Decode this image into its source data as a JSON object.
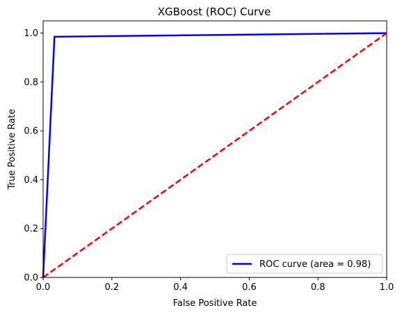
{
  "chart_data": {
    "type": "line",
    "title": "XGBoost (ROC) Curve",
    "xlabel": "False Positive Rate",
    "ylabel": "True Positive Rate",
    "xlim": [
      0.0,
      1.0
    ],
    "ylim": [
      0.0,
      1.05
    ],
    "xticks": [
      "0.0",
      "0.2",
      "0.4",
      "0.6",
      "0.8",
      "1.0"
    ],
    "yticks": [
      "0.0",
      "0.2",
      "0.4",
      "0.6",
      "0.8",
      "1.0"
    ],
    "grid": false,
    "legend_position": "lower-right",
    "series": [
      {
        "name": "ROC curve (area = 0.98)",
        "color": "#0000ff",
        "style": "solid",
        "x": [
          0.0,
          0.033,
          1.0
        ],
        "y": [
          0.0,
          0.985,
          1.0
        ]
      },
      {
        "color": "#ff0000",
        "style": "dashed",
        "x": [
          0.0,
          1.0
        ],
        "y": [
          0.0,
          1.0
        ]
      }
    ]
  }
}
